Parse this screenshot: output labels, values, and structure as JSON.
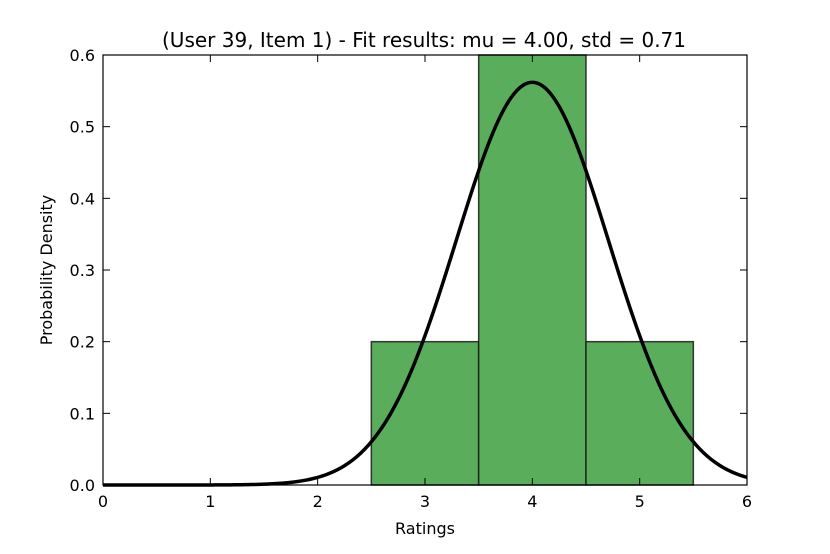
{
  "chart_data": {
    "type": "bar",
    "title": "(User 39, Item 1) - Fit results: mu = 4.00,  std = 0.71",
    "xlabel": "Ratings",
    "ylabel": "Probability Density",
    "xlim": [
      0,
      6
    ],
    "ylim": [
      0,
      0.6
    ],
    "xticks": [
      "0",
      "1",
      "2",
      "3",
      "4",
      "5",
      "6"
    ],
    "yticks": [
      "0.0",
      "0.1",
      "0.2",
      "0.3",
      "0.4",
      "0.5",
      "0.6"
    ],
    "grid": false,
    "histogram": {
      "bins": [
        {
          "x0": 2.5,
          "x1": 3.5,
          "value": 0.2
        },
        {
          "x0": 3.5,
          "x1": 4.5,
          "value": 0.6
        },
        {
          "x0": 4.5,
          "x1": 5.5,
          "value": 0.2
        }
      ],
      "color": "#5aad5a"
    },
    "fit_curve": {
      "distribution": "normal",
      "mu": 4.0,
      "std": 0.71,
      "color": "#000000"
    }
  }
}
